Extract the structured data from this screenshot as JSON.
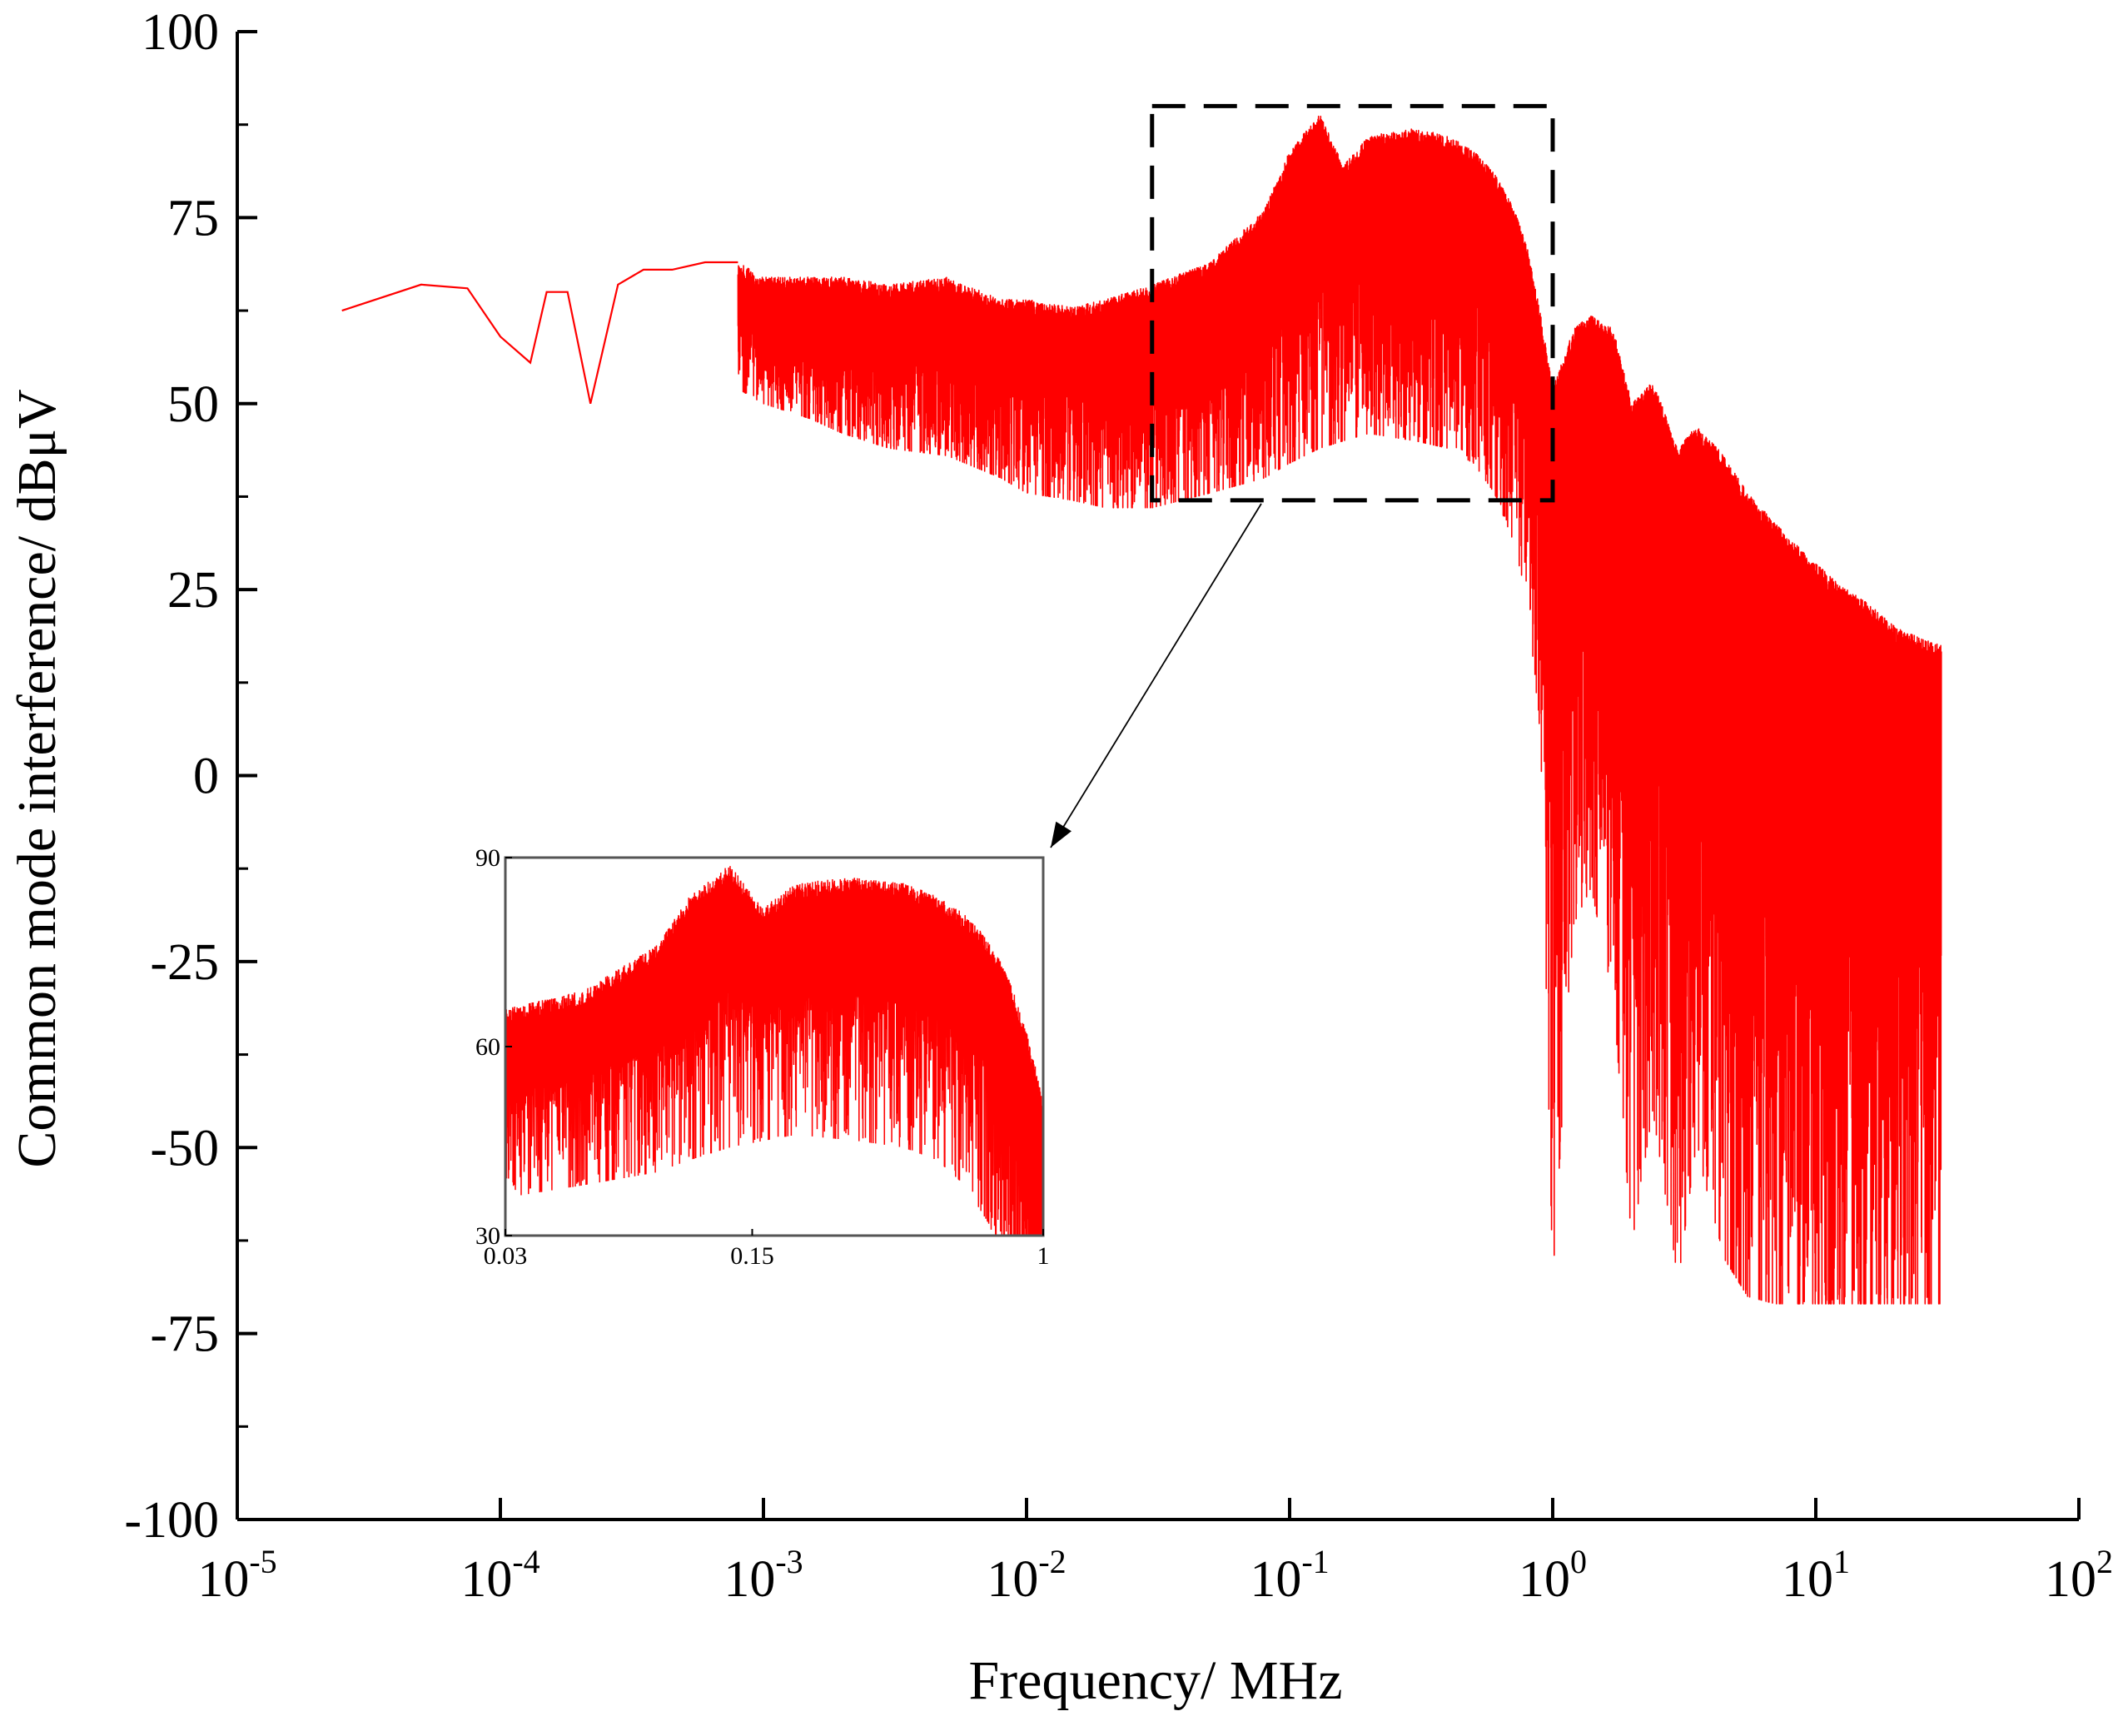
{
  "chart_data": {
    "type": "line",
    "title": "",
    "xlabel": "Frequency/ MHz",
    "ylabel": "Common mode interference/ dBμV",
    "x_scale": "log",
    "xlim": [
      1e-05,
      100
    ],
    "ylim": [
      -100,
      100
    ],
    "x_ticks": [
      {
        "base": "10",
        "exp": "-5"
      },
      {
        "base": "10",
        "exp": "-4"
      },
      {
        "base": "10",
        "exp": "-3"
      },
      {
        "base": "10",
        "exp": "-2"
      },
      {
        "base": "10",
        "exp": "-1"
      },
      {
        "base": "10",
        "exp": "0"
      },
      {
        "base": "10",
        "exp": "1"
      },
      {
        "base": "10",
        "exp": "2"
      }
    ],
    "y_ticks": [
      "100",
      "75",
      "50",
      "25",
      "0",
      "-25",
      "-50",
      "-75",
      "-100"
    ],
    "series": [
      {
        "color": "#ff0000",
        "envelope": {
          "freq_MHz": [
            2.5e-05,
            5e-05,
            7.5e-05,
            0.0001,
            0.00013,
            0.00015,
            0.00018,
            0.00022,
            0.00028,
            0.00035,
            0.00045,
            0.0006,
            0.0008,
            0.001,
            0.0015,
            0.002,
            0.003,
            0.005,
            0.008,
            0.01,
            0.015,
            0.02,
            0.03,
            0.05,
            0.08,
            0.1,
            0.13,
            0.16,
            0.2,
            0.3,
            0.4,
            0.5,
            0.6,
            0.7,
            0.8,
            0.9,
            1.0,
            1.2,
            1.4,
            1.7,
            2.0,
            2.4,
            3.0,
            3.5,
            4.5,
            5.5,
            7.0,
            9.0,
            12.0,
            16.0,
            20.0,
            25.0,
            30.0
          ],
          "upper_dBuV": [
            62.5,
            66,
            65.5,
            59,
            55.5,
            65,
            65,
            50,
            66,
            68,
            68,
            69,
            69,
            67,
            67,
            67,
            66,
            67,
            64,
            64,
            63,
            64,
            66,
            69,
            76,
            84,
            89,
            82,
            86,
            87,
            86,
            84,
            81,
            77,
            71,
            62,
            52,
            60,
            62,
            60,
            50,
            53,
            44,
            47,
            43,
            38,
            34,
            30,
            26,
            23,
            20,
            18.5,
            17.5
          ],
          "lower_dBuV": [
            62.5,
            66,
            65.5,
            59,
            55.5,
            64,
            64,
            50,
            62,
            60,
            55,
            52,
            52,
            50,
            48,
            46,
            44,
            43,
            40,
            38,
            37,
            36,
            36,
            38,
            40,
            42,
            44,
            45,
            46,
            45,
            44,
            42,
            38,
            32,
            24,
            5,
            -68,
            -20,
            -15,
            -30,
            -63,
            -45,
            -68,
            -50,
            -65,
            -70,
            -71,
            -71,
            -71,
            -71,
            -71,
            -71,
            -71
          ]
        }
      }
    ],
    "annotation": {
      "type": "dashed-box",
      "x_range_MHz": [
        0.03,
        1.0
      ],
      "y_range_dBuV": [
        37,
        90
      ]
    },
    "inset": {
      "xlim": [
        0.03,
        1
      ],
      "ylim": [
        30,
        90
      ],
      "x_tick_labels": [
        "0.03",
        "0.15",
        "1"
      ],
      "y_tick_labels": [
        "90",
        "60",
        "30"
      ]
    },
    "grid": false,
    "legend": "none"
  }
}
